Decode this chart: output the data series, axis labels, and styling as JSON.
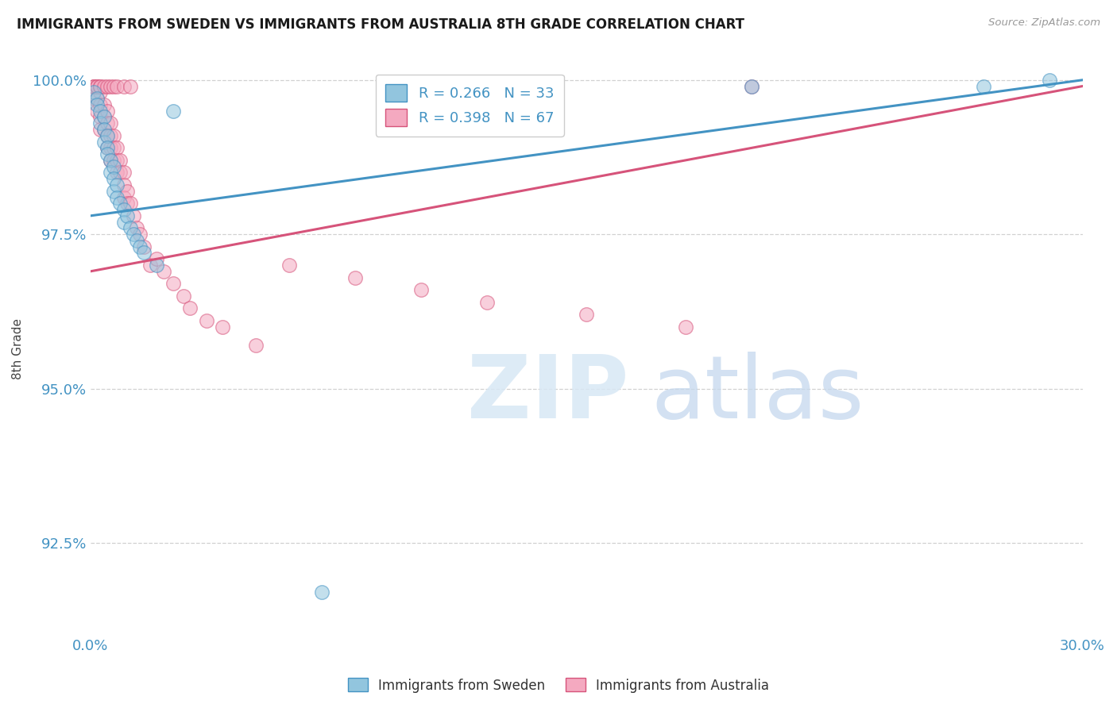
{
  "title": "IMMIGRANTS FROM SWEDEN VS IMMIGRANTS FROM AUSTRALIA 8TH GRADE CORRELATION CHART",
  "source": "Source: ZipAtlas.com",
  "ylabel": "8th Grade",
  "xlim": [
    0.0,
    0.3
  ],
  "ylim": [
    0.91,
    1.003
  ],
  "xticks": [
    0.0,
    0.05,
    0.1,
    0.15,
    0.2,
    0.25,
    0.3
  ],
  "xticklabels": [
    "0.0%",
    "",
    "",
    "",
    "",
    "",
    "30.0%"
  ],
  "yticks": [
    0.925,
    0.95,
    0.975,
    1.0
  ],
  "yticklabels": [
    "92.5%",
    "95.0%",
    "97.5%",
    "100.0%"
  ],
  "legend_labels": [
    "Immigrants from Sweden",
    "Immigrants from Australia"
  ],
  "r_sweden": 0.266,
  "n_sweden": 33,
  "r_australia": 0.398,
  "n_australia": 67,
  "color_sweden": "#92c5de",
  "color_australia": "#f4a9c0",
  "line_color_sweden": "#4393c3",
  "line_color_australia": "#d6537a",
  "sw_line_x0": 0.0,
  "sw_line_y0": 0.978,
  "sw_line_x1": 0.3,
  "sw_line_y1": 1.0,
  "au_line_x0": 0.0,
  "au_line_y0": 0.969,
  "au_line_x1": 0.3,
  "au_line_y1": 0.999,
  "sweden_x": [
    0.001,
    0.002,
    0.002,
    0.003,
    0.003,
    0.004,
    0.004,
    0.004,
    0.005,
    0.005,
    0.005,
    0.006,
    0.006,
    0.007,
    0.007,
    0.007,
    0.008,
    0.008,
    0.009,
    0.01,
    0.01,
    0.011,
    0.012,
    0.013,
    0.014,
    0.015,
    0.016,
    0.02,
    0.025,
    0.07,
    0.2,
    0.27,
    0.29
  ],
  "sweden_y": [
    0.998,
    0.997,
    0.996,
    0.995,
    0.993,
    0.994,
    0.992,
    0.99,
    0.991,
    0.989,
    0.988,
    0.987,
    0.985,
    0.986,
    0.984,
    0.982,
    0.983,
    0.981,
    0.98,
    0.979,
    0.977,
    0.978,
    0.976,
    0.975,
    0.974,
    0.973,
    0.972,
    0.97,
    0.995,
    0.917,
    0.999,
    0.999,
    1.0
  ],
  "australia_x": [
    0.001,
    0.001,
    0.002,
    0.002,
    0.002,
    0.003,
    0.003,
    0.003,
    0.003,
    0.004,
    0.004,
    0.004,
    0.005,
    0.005,
    0.005,
    0.005,
    0.006,
    0.006,
    0.006,
    0.006,
    0.007,
    0.007,
    0.007,
    0.008,
    0.008,
    0.008,
    0.009,
    0.009,
    0.01,
    0.01,
    0.01,
    0.011,
    0.011,
    0.012,
    0.013,
    0.014,
    0.015,
    0.016,
    0.018,
    0.02,
    0.022,
    0.025,
    0.028,
    0.03,
    0.035,
    0.04,
    0.05,
    0.06,
    0.08,
    0.1,
    0.12,
    0.15,
    0.18,
    0.2,
    0.001,
    0.001,
    0.002,
    0.002,
    0.003,
    0.003,
    0.004,
    0.005,
    0.006,
    0.007,
    0.008,
    0.01,
    0.012
  ],
  "australia_y": [
    0.999,
    0.997,
    0.999,
    0.997,
    0.995,
    0.998,
    0.996,
    0.994,
    0.992,
    0.996,
    0.994,
    0.992,
    0.995,
    0.993,
    0.991,
    0.989,
    0.993,
    0.991,
    0.989,
    0.987,
    0.991,
    0.989,
    0.987,
    0.989,
    0.987,
    0.985,
    0.987,
    0.985,
    0.985,
    0.983,
    0.981,
    0.982,
    0.98,
    0.98,
    0.978,
    0.976,
    0.975,
    0.973,
    0.97,
    0.971,
    0.969,
    0.967,
    0.965,
    0.963,
    0.961,
    0.96,
    0.957,
    0.97,
    0.968,
    0.966,
    0.964,
    0.962,
    0.96,
    0.999,
    0.999,
    0.999,
    0.999,
    0.999,
    0.999,
    0.999,
    0.999,
    0.999,
    0.999,
    0.999,
    0.999,
    0.999,
    0.999
  ]
}
